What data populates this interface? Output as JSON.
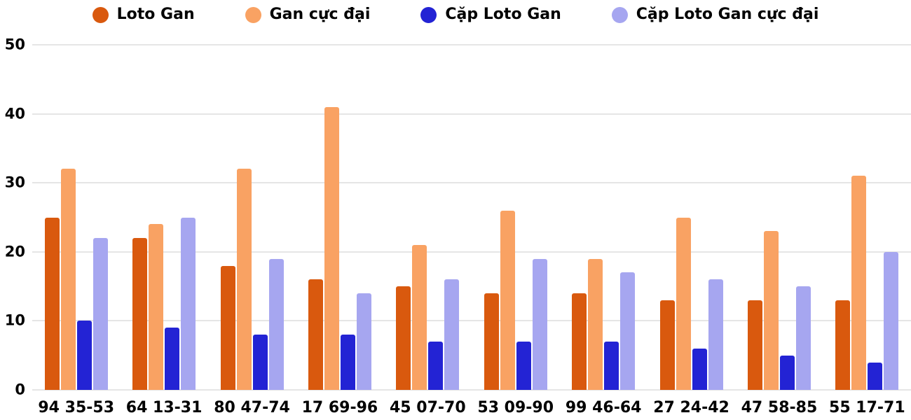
{
  "chart_data": {
    "type": "bar",
    "title": "",
    "xlabel": "",
    "ylabel": "",
    "ylim": [
      0,
      50
    ],
    "yticks": [
      0,
      10,
      20,
      30,
      40,
      50
    ],
    "grid": true,
    "legend_position": "top",
    "background_color": "#ffffff",
    "gridline_color": "#e5e5e5",
    "categories": [
      "94 35-53",
      "64 13-31",
      "80 47-74",
      "17 69-96",
      "45 07-70",
      "53 09-90",
      "99 46-64",
      "27 24-42",
      "47 58-85",
      "55 17-71"
    ],
    "series": [
      {
        "name": "Loto Gan",
        "color": "#d9590e",
        "values": [
          25,
          22,
          18,
          16,
          15,
          14,
          14,
          13,
          13,
          13
        ]
      },
      {
        "name": "Gan cực đại",
        "color": "#f9a263",
        "values": [
          32,
          24,
          32,
          41,
          21,
          26,
          19,
          25,
          23,
          31
        ]
      },
      {
        "name": "Cặp Loto Gan",
        "color": "#2323d4",
        "values": [
          10,
          9,
          8,
          8,
          7,
          7,
          7,
          6,
          5,
          4
        ]
      },
      {
        "name": "Cặp Loto Gan cực đại",
        "color": "#a6a6f0",
        "values": [
          22,
          25,
          19,
          14,
          16,
          19,
          17,
          16,
          15,
          20
        ]
      }
    ]
  }
}
